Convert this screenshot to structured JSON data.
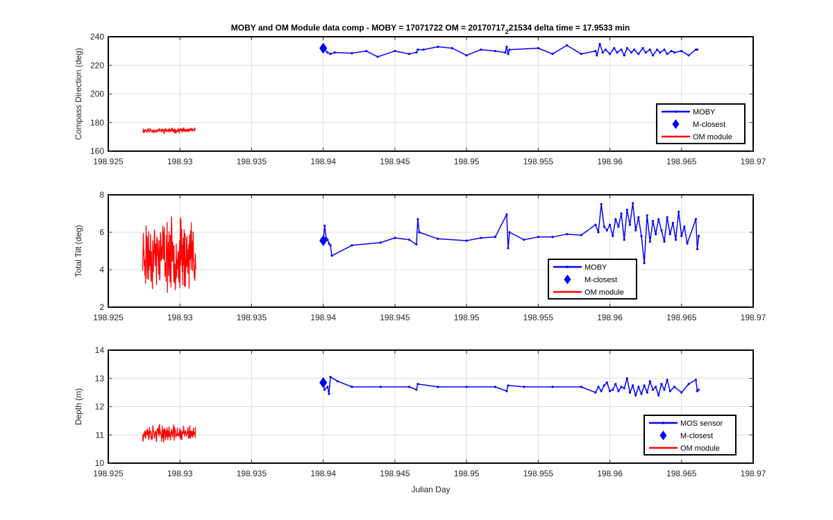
{
  "figure": {
    "title_main": "MOBY and OM Module data comp - MOBY = 17071722 OM = 20170717",
    "title_sub": "2",
    "title_tail": "21534 delta time = 17.9533 min",
    "colors": {
      "moby": "#0000ff",
      "om": "#ff0000",
      "grid": "#dcdcdc",
      "axis": "#262626"
    }
  },
  "chart_data": [
    {
      "type": "line",
      "xlabel": "",
      "ylabel": "Compass Direction (deg)",
      "xlim": [
        198.925,
        198.97
      ],
      "ylim": [
        160,
        240
      ],
      "xticks": [
        "198.925",
        "198.93",
        "198.935",
        "198.94",
        "198.945",
        "198.95",
        "198.955",
        "198.96",
        "198.965",
        "198.97"
      ],
      "yticks": [
        "160",
        "180",
        "200",
        "220",
        "240"
      ],
      "grid": true,
      "legend": {
        "placement": "bottom-right",
        "entries": [
          "MOBY",
          "M-closest",
          "OM module"
        ]
      },
      "series": [
        {
          "name": "MOBY",
          "style": "line-dots",
          "points": [
            [
              198.94,
              232
            ],
            [
              198.9403,
              229
            ],
            [
              198.9405,
              228
            ],
            [
              198.9408,
              229
            ],
            [
              198.942,
              228.5
            ],
            [
              198.943,
              230
            ],
            [
              198.9438,
              226
            ],
            [
              198.945,
              230
            ],
            [
              198.946,
              228
            ],
            [
              198.9465,
              229
            ],
            [
              198.9466,
              231
            ],
            [
              198.947,
              231
            ],
            [
              198.948,
              233
            ],
            [
              198.949,
              232
            ],
            [
              198.95,
              227
            ],
            [
              198.951,
              231
            ],
            [
              198.952,
              230
            ],
            [
              198.9527,
              229
            ],
            [
              198.9528,
              233
            ],
            [
              198.9529,
              228
            ],
            [
              198.953,
              231
            ],
            [
              198.955,
              232
            ],
            [
              198.956,
              228
            ],
            [
              198.957,
              234
            ],
            [
              198.958,
              228
            ],
            [
              198.959,
              230
            ],
            [
              198.9591,
              227
            ],
            [
              198.9593,
              235
            ],
            [
              198.9595,
              229
            ],
            [
              198.9597,
              231
            ],
            [
              198.96,
              228
            ],
            [
              198.9603,
              232
            ],
            [
              198.9605,
              229
            ],
            [
              198.9608,
              231
            ],
            [
              198.961,
              227
            ],
            [
              198.9612,
              232
            ],
            [
              198.9615,
              229
            ],
            [
              198.9617,
              231
            ],
            [
              198.962,
              228
            ],
            [
              198.9623,
              232
            ],
            [
              198.9625,
              229
            ],
            [
              198.9628,
              231
            ],
            [
              198.963,
              227
            ],
            [
              198.9633,
              231
            ],
            [
              198.9635,
              229
            ],
            [
              198.9638,
              231
            ],
            [
              198.964,
              228
            ],
            [
              198.9643,
              230
            ],
            [
              198.9645,
              229
            ],
            [
              198.965,
              230
            ],
            [
              198.9655,
              227
            ],
            [
              198.966,
              231
            ],
            [
              198.9661,
              231
            ]
          ]
        },
        {
          "name": "M-closest",
          "style": "diamond",
          "points": [
            [
              198.94,
              232
            ]
          ]
        },
        {
          "name": "OM module",
          "style": "noise",
          "x_range": [
            198.9274,
            198.9311
          ],
          "y_center": 174.5,
          "y_spread": 2.2,
          "n": 150,
          "seed": 11
        }
      ]
    },
    {
      "type": "line",
      "xlabel": "",
      "ylabel": "Total Tilt (deg)",
      "xlim": [
        198.925,
        198.97
      ],
      "ylim": [
        2,
        8
      ],
      "xticks": [
        "198.925",
        "198.93",
        "198.935",
        "198.94",
        "198.945",
        "198.95",
        "198.955",
        "198.96",
        "198.965",
        "198.97"
      ],
      "yticks": [
        "2",
        "4",
        "6",
        "8"
      ],
      "grid": true,
      "legend": {
        "placement": "bottom-center",
        "entries": [
          "MOBY",
          "M-closest",
          "OM module"
        ]
      },
      "series": [
        {
          "name": "MOBY",
          "style": "line-dots",
          "points": [
            [
              198.94,
              5.55
            ],
            [
              198.9401,
              6.35
            ],
            [
              198.9402,
              5.7
            ],
            [
              198.9403,
              5.6
            ],
            [
              198.9404,
              5.4
            ],
            [
              198.9405,
              5.3
            ],
            [
              198.9406,
              4.75
            ],
            [
              198.942,
              5.3
            ],
            [
              198.944,
              5.45
            ],
            [
              198.945,
              5.7
            ],
            [
              198.946,
              5.6
            ],
            [
              198.9465,
              5.35
            ],
            [
              198.9466,
              6.7
            ],
            [
              198.9467,
              6.0
            ],
            [
              198.948,
              5.65
            ],
            [
              198.95,
              5.55
            ],
            [
              198.951,
              5.7
            ],
            [
              198.952,
              5.75
            ],
            [
              198.9528,
              6.95
            ],
            [
              198.9529,
              5.15
            ],
            [
              198.953,
              6.0
            ],
            [
              198.954,
              5.6
            ],
            [
              198.955,
              5.75
            ],
            [
              198.956,
              5.75
            ],
            [
              198.957,
              5.9
            ],
            [
              198.958,
              5.85
            ],
            [
              198.959,
              6.4
            ],
            [
              198.9592,
              6.0
            ],
            [
              198.9594,
              7.5
            ],
            [
              198.9596,
              6.3
            ],
            [
              198.9598,
              6.1
            ],
            [
              198.96,
              6.4
            ],
            [
              198.9602,
              5.8
            ],
            [
              198.9604,
              6.7
            ],
            [
              198.9606,
              6.3
            ],
            [
              198.9608,
              7.0
            ],
            [
              198.961,
              5.6
            ],
            [
              198.9612,
              7.2
            ],
            [
              198.9614,
              6.4
            ],
            [
              198.9616,
              7.55
            ],
            [
              198.9618,
              6.1
            ],
            [
              198.962,
              6.8
            ],
            [
              198.9622,
              5.8
            ],
            [
              198.9624,
              4.35
            ],
            [
              198.9626,
              6.9
            ],
            [
              198.9628,
              5.5
            ],
            [
              198.963,
              6.6
            ],
            [
              198.9632,
              5.9
            ],
            [
              198.9634,
              6.7
            ],
            [
              198.9636,
              6.1
            ],
            [
              198.9638,
              5.5
            ],
            [
              198.964,
              6.8
            ],
            [
              198.9642,
              5.9
            ],
            [
              198.9644,
              6.5
            ],
            [
              198.9646,
              5.6
            ],
            [
              198.9648,
              7.1
            ],
            [
              198.965,
              5.8
            ],
            [
              198.9652,
              6.3
            ],
            [
              198.9654,
              5.4
            ],
            [
              198.966,
              6.7
            ],
            [
              198.9661,
              5.1
            ],
            [
              198.9662,
              5.8
            ]
          ]
        },
        {
          "name": "M-closest",
          "style": "diamond",
          "points": [
            [
              198.94,
              5.55
            ]
          ]
        },
        {
          "name": "OM module",
          "style": "noise",
          "x_range": [
            198.9274,
            198.9311
          ],
          "y_center": 4.8,
          "y_spread": 2.2,
          "n": 170,
          "seed": 23
        }
      ]
    },
    {
      "type": "line",
      "xlabel": "Julian Day",
      "ylabel": "Depth (m)",
      "xlim": [
        198.925,
        198.97
      ],
      "ylim": [
        10,
        14
      ],
      "xticks": [
        "198.925",
        "198.93",
        "198.935",
        "198.94",
        "198.945",
        "198.95",
        "198.955",
        "198.96",
        "198.965",
        "198.97"
      ],
      "yticks": [
        "10",
        "11",
        "12",
        "13",
        "14"
      ],
      "grid": true,
      "legend": {
        "placement": "bottom-right",
        "entries": [
          "MOS sensor",
          "M-closest",
          "OM module"
        ]
      },
      "series": [
        {
          "name": "MOS sensor",
          "style": "line-dots",
          "points": [
            [
              198.94,
              12.85
            ],
            [
              198.9401,
              12.6
            ],
            [
              198.9403,
              12.7
            ],
            [
              198.9404,
              12.45
            ],
            [
              198.9405,
              13.05
            ],
            [
              198.941,
              12.9
            ],
            [
              198.942,
              12.7
            ],
            [
              198.944,
              12.7
            ],
            [
              198.946,
              12.7
            ],
            [
              198.9465,
              12.6
            ],
            [
              198.9466,
              12.8
            ],
            [
              198.948,
              12.7
            ],
            [
              198.95,
              12.7
            ],
            [
              198.952,
              12.7
            ],
            [
              198.9528,
              12.55
            ],
            [
              198.9529,
              12.75
            ],
            [
              198.954,
              12.7
            ],
            [
              198.956,
              12.7
            ],
            [
              198.958,
              12.7
            ],
            [
              198.959,
              12.5
            ],
            [
              198.9592,
              12.7
            ],
            [
              198.9594,
              12.55
            ],
            [
              198.9596,
              12.75
            ],
            [
              198.9598,
              12.85
            ],
            [
              198.96,
              12.55
            ],
            [
              198.9602,
              12.6
            ],
            [
              198.9604,
              12.8
            ],
            [
              198.9606,
              12.55
            ],
            [
              198.9608,
              12.7
            ],
            [
              198.961,
              12.65
            ],
            [
              198.9612,
              13.0
            ],
            [
              198.9614,
              12.5
            ],
            [
              198.9616,
              12.75
            ],
            [
              198.9618,
              12.4
            ],
            [
              198.962,
              12.7
            ],
            [
              198.9622,
              12.45
            ],
            [
              198.9624,
              12.75
            ],
            [
              198.9626,
              12.5
            ],
            [
              198.9628,
              12.9
            ],
            [
              198.963,
              12.6
            ],
            [
              198.9632,
              12.7
            ],
            [
              198.9634,
              12.4
            ],
            [
              198.9636,
              12.8
            ],
            [
              198.9638,
              12.6
            ],
            [
              198.964,
              12.95
            ],
            [
              198.9642,
              12.55
            ],
            [
              198.9645,
              12.7
            ],
            [
              198.965,
              12.5
            ],
            [
              198.9655,
              12.8
            ],
            [
              198.966,
              12.95
            ],
            [
              198.9661,
              12.55
            ],
            [
              198.9662,
              12.6
            ]
          ]
        },
        {
          "name": "M-closest",
          "style": "diamond",
          "points": [
            [
              198.94,
              12.85
            ]
          ]
        },
        {
          "name": "OM module",
          "style": "noise",
          "x_range": [
            198.9274,
            198.9311
          ],
          "y_center": 11.05,
          "y_spread": 0.35,
          "n": 180,
          "seed": 37
        }
      ]
    }
  ]
}
